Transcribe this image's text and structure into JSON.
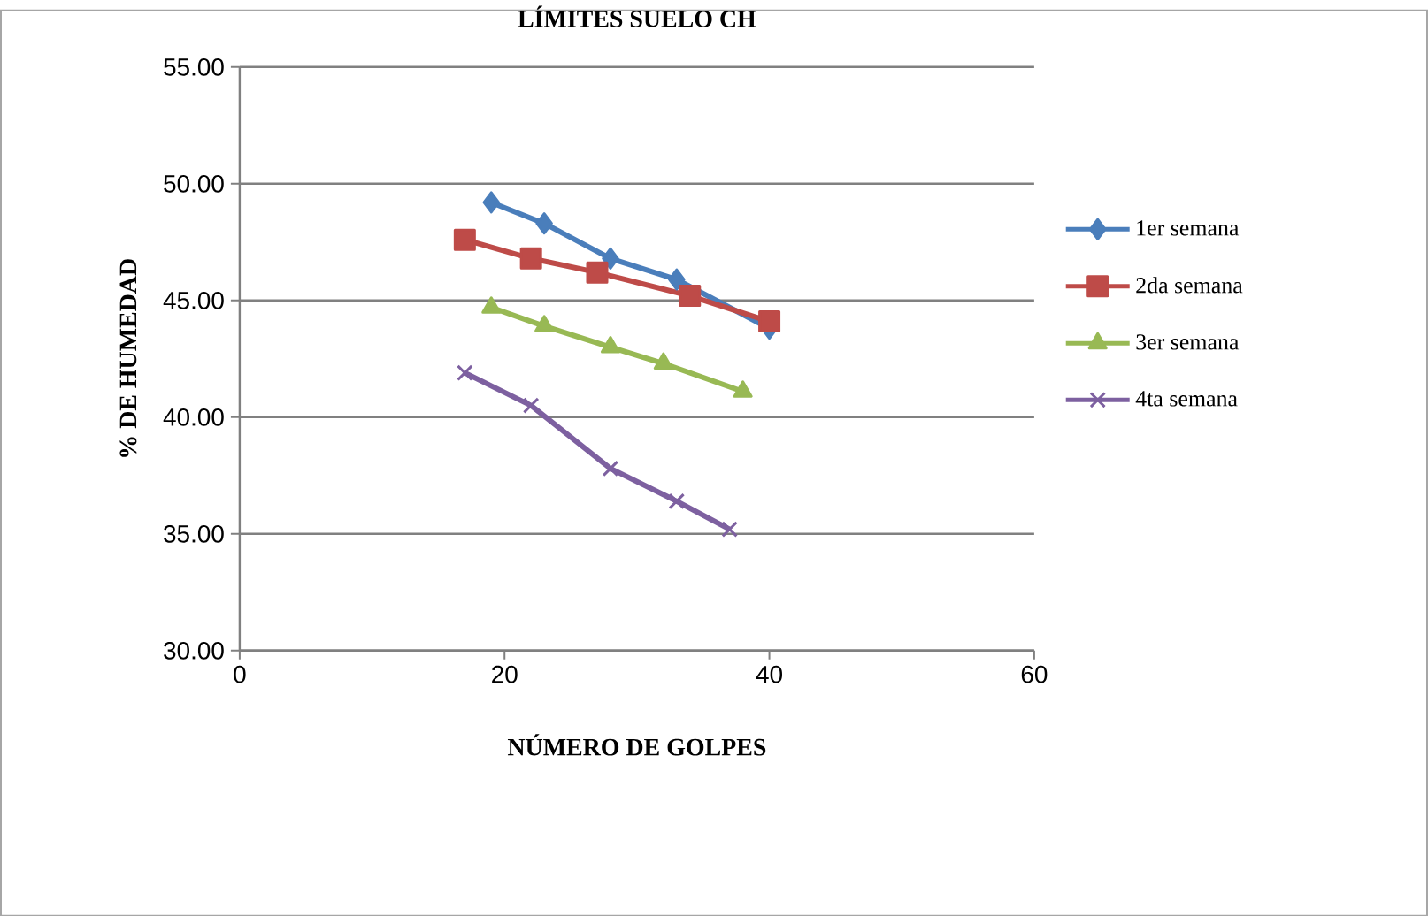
{
  "chart_data": {
    "type": "line",
    "title": "LÍMITES SUELO CH",
    "xlabel": "NÚMERO DE GOLPES",
    "ylabel": "% DE HUMEDAD",
    "xlim": [
      0,
      60
    ],
    "xticks": [
      0,
      20,
      40,
      60
    ],
    "ylim": [
      30,
      55
    ],
    "yticks": [
      {
        "value": 30,
        "label": "30.00"
      },
      {
        "value": 35,
        "label": "35.00"
      },
      {
        "value": 40,
        "label": "40.00"
      },
      {
        "value": 45,
        "label": "45.00"
      },
      {
        "value": 50,
        "label": "50.00"
      },
      {
        "value": 55,
        "label": "55.00"
      }
    ],
    "grid": "y",
    "legend": "right",
    "line_style": "solid",
    "series": [
      {
        "name": "1er semana",
        "color": "#4a7ebb",
        "marker": "diamond",
        "x": [
          19,
          23,
          28,
          33,
          40
        ],
        "values": [
          49.2,
          48.3,
          46.8,
          45.9,
          43.8
        ]
      },
      {
        "name": "2da semana",
        "color": "#be4b48",
        "marker": "square",
        "x": [
          17,
          22,
          27,
          34,
          40
        ],
        "values": [
          47.6,
          46.8,
          46.2,
          45.2,
          44.1
        ]
      },
      {
        "name": "3er semana",
        "color": "#98b954",
        "marker": "triangle",
        "x": [
          19,
          23,
          28,
          32,
          38
        ],
        "values": [
          44.7,
          43.9,
          43.0,
          42.3,
          41.1
        ]
      },
      {
        "name": "4ta semana",
        "color": "#7d60a0",
        "marker": "cross",
        "x": [
          17,
          22,
          28,
          33,
          37
        ],
        "values": [
          41.9,
          40.5,
          37.8,
          36.4,
          35.2
        ]
      }
    ]
  }
}
